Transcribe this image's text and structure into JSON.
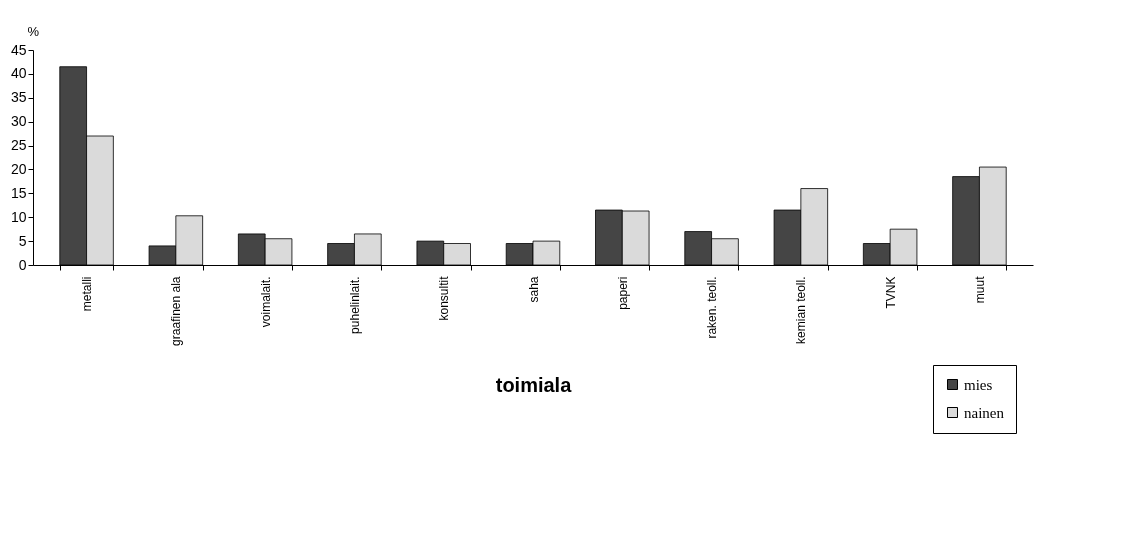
{
  "chart_data": {
    "type": "bar",
    "xlabel": "toimiala",
    "ylabel": "%",
    "categories": [
      "metalli",
      "graafinen ala",
      "voimalait.",
      "puhelinlait.",
      "konsultit",
      "saha",
      "paperi",
      "raken. teoll.",
      "kemian teoll.",
      "TVNK",
      "muut"
    ],
    "series": [
      {
        "name": "mies",
        "color": "#454545",
        "values": [
          41.5,
          4,
          6.5,
          4.5,
          5,
          4.5,
          11.5,
          7,
          11.5,
          4.5,
          18.5
        ]
      },
      {
        "name": "nainen",
        "color": "#dadada",
        "values": [
          27,
          10.3,
          5.5,
          6.5,
          4.5,
          5,
          11.3,
          5.5,
          16,
          7.5,
          20.5
        ]
      }
    ],
    "ylim": [
      0,
      45
    ],
    "yticks": [
      0,
      5,
      10,
      15,
      20,
      25,
      30,
      35,
      40,
      45
    ],
    "grid": false,
    "legend": "bottom right"
  }
}
